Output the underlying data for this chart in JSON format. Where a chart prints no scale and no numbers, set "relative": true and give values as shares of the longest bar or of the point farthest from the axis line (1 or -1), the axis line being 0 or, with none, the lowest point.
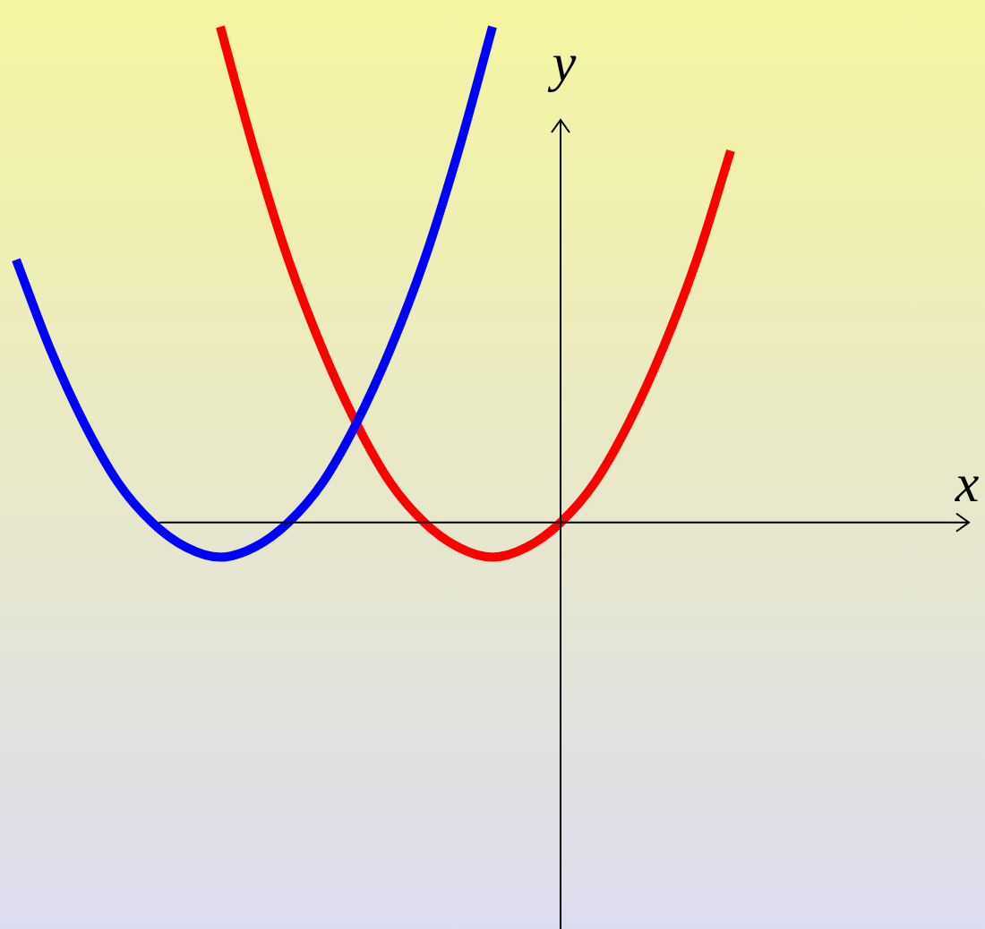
{
  "chart_data": {
    "type": "line",
    "relative": true,
    "xlabel": "x",
    "ylabel": "y",
    "legend": false,
    "marker": "none",
    "line_style": "solid",
    "categories": [
      null,
      null,
      null,
      null,
      null,
      null,
      null,
      null,
      null,
      null,
      null,
      null,
      null,
      null,
      null,
      null,
      null,
      null,
      null,
      null,
      null,
      null,
      null,
      null,
      null,
      null,
      null,
      null,
      null
    ],
    "series": [
      {
        "color": "#0000ff",
        "values": [
          0.53,
          0.35,
          0.2,
          0.08,
          0,
          -0.05,
          -0.07,
          -0.05,
          0,
          0.08,
          0.2,
          0.35,
          0.53,
          0.75,
          1,
          null,
          null,
          null,
          null,
          null,
          null,
          null,
          null,
          null,
          null,
          null,
          null,
          null,
          null
        ]
      },
      {
        "color": "#ff0000",
        "values": [
          null,
          null,
          null,
          null,
          null,
          null,
          1,
          0.75,
          0.53,
          0.35,
          0.2,
          0.08,
          0,
          -0.05,
          -0.07,
          -0.05,
          0,
          0.08,
          0.2,
          0.35,
          0.53,
          0.75,
          null,
          null,
          null,
          null,
          null,
          null,
          null
        ]
      }
    ]
  }
}
